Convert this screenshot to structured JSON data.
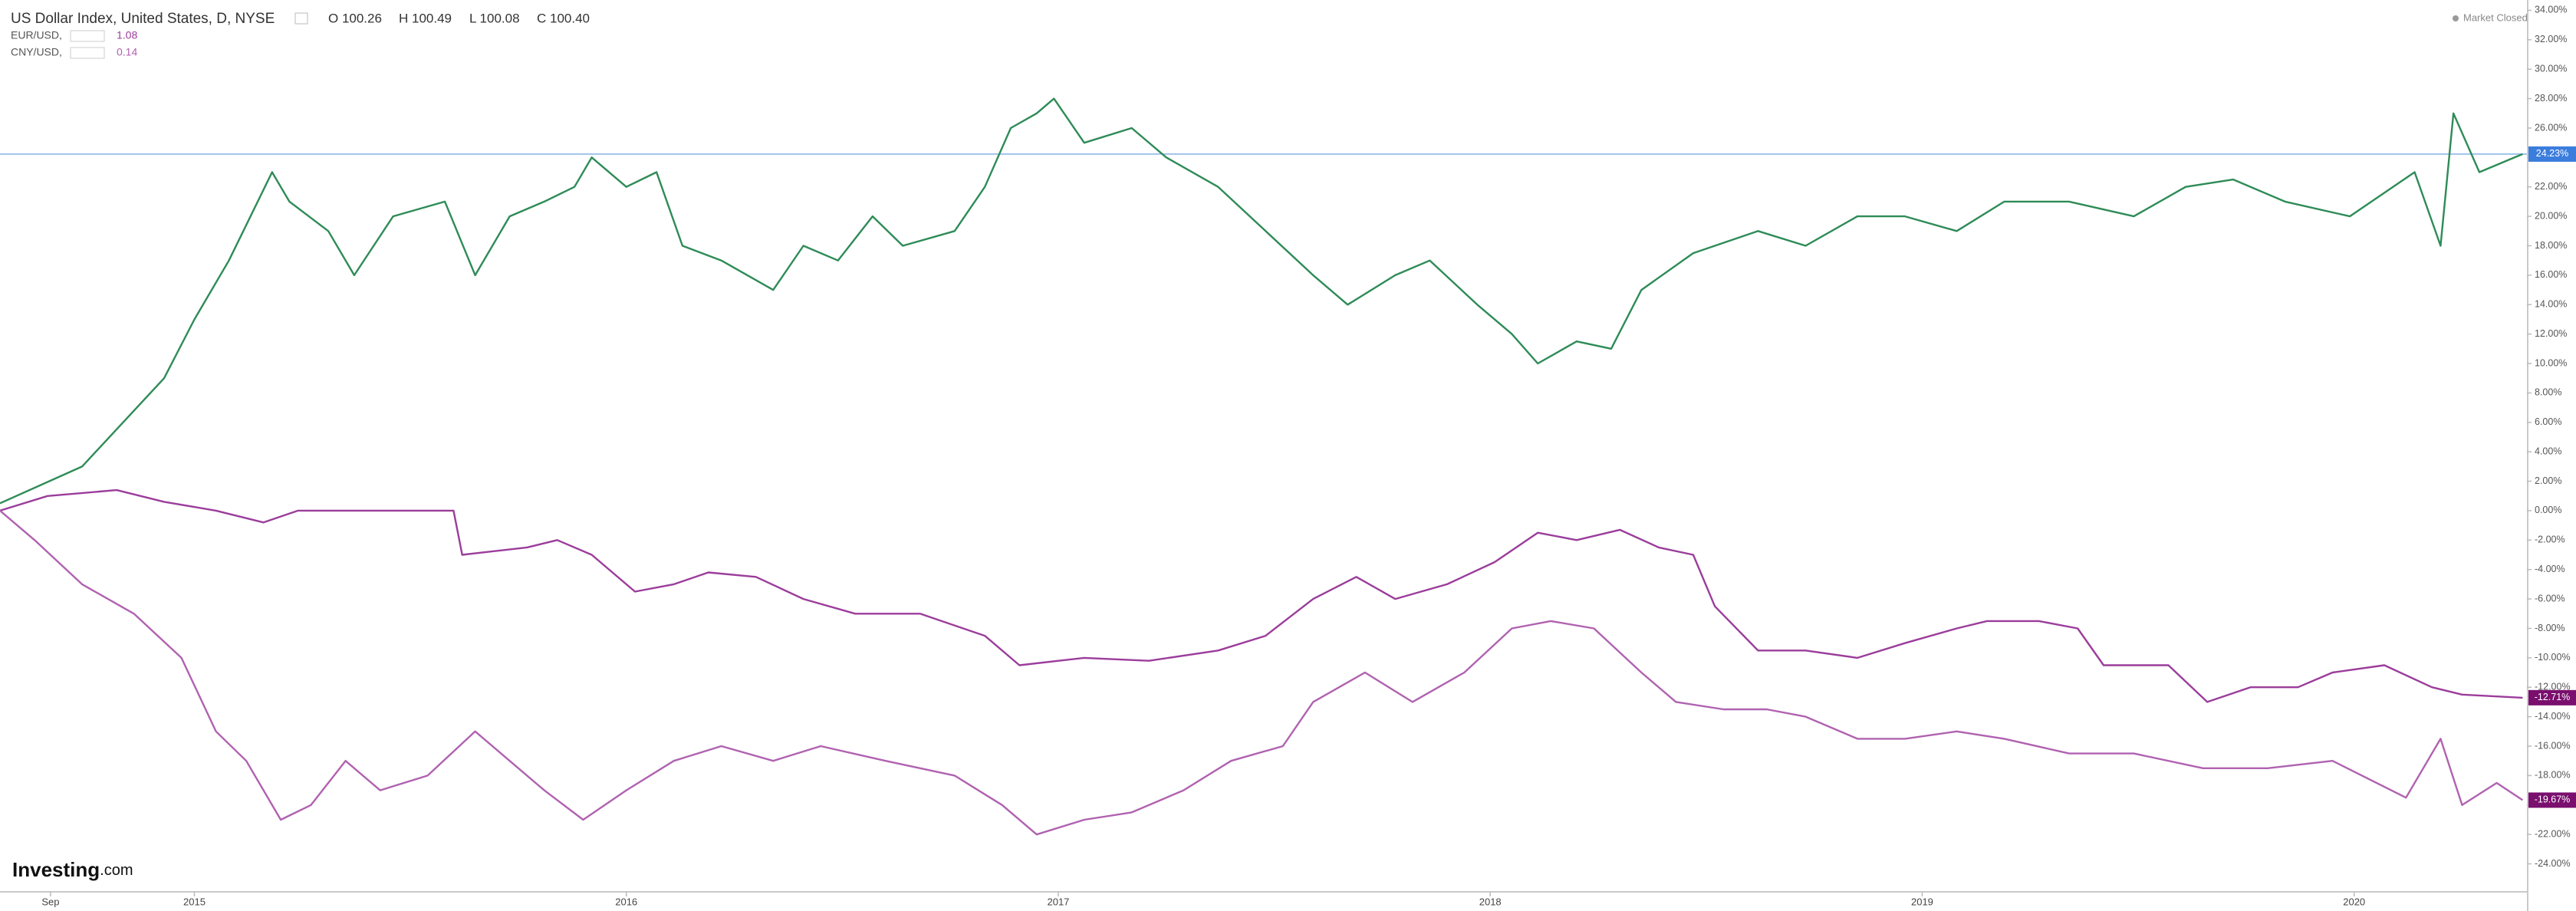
{
  "header": {
    "title": "US Dollar Index, United States, D, NYSE",
    "open": "O 100.26",
    "high": "H 100.49",
    "low": "L 100.08",
    "close": "C 100.40",
    "studies": [
      {
        "name": "EUR/USD,",
        "value": "1.08"
      },
      {
        "name": "CNY/USD,",
        "value": "0.14"
      }
    ],
    "status": "Market Closed",
    "brand": "Investing",
    "brand_suffix": ".com"
  },
  "chart_data": {
    "type": "line",
    "xlim": [
      2014.55,
      2020.4
    ],
    "xticks": [
      {
        "value": 2014.667,
        "label": "Sep"
      },
      2015,
      2016,
      2017,
      2018,
      2019,
      2020
    ],
    "ylim": [
      -25.9,
      34.7
    ],
    "yticks": [
      {
        "value": 34,
        "label": "34.00%"
      },
      {
        "value": 32,
        "label": "32.00%"
      },
      {
        "value": 30,
        "label": "30.00%"
      },
      {
        "value": 28,
        "label": "28.00%"
      },
      {
        "value": 26,
        "label": "26.00%"
      },
      {
        "value": 24,
        "label": "24.00%"
      },
      {
        "value": 22,
        "label": "22.00%"
      },
      {
        "value": 20,
        "label": "20.00%"
      },
      {
        "value": 18,
        "label": "18.00%"
      },
      {
        "value": 16,
        "label": "16.00%"
      },
      {
        "value": 14,
        "label": "14.00%"
      },
      {
        "value": 12,
        "label": "12.00%"
      },
      {
        "value": 10,
        "label": "10.00%"
      },
      {
        "value": 8,
        "label": "8.00%"
      },
      {
        "value": 6,
        "label": "6.00%"
      },
      {
        "value": 4,
        "label": "4.00%"
      },
      {
        "value": 2,
        "label": "2.00%"
      },
      {
        "value": 0,
        "label": "0.00%"
      },
      {
        "value": -2,
        "label": "-2.00%"
      },
      {
        "value": -4,
        "label": "-4.00%"
      },
      {
        "value": -6,
        "label": "-6.00%"
      },
      {
        "value": -8,
        "label": "-8.00%"
      },
      {
        "value": -10,
        "label": "-10.00%"
      },
      {
        "value": -12,
        "label": "-12.00%"
      },
      {
        "value": -14,
        "label": "-14.00%"
      },
      {
        "value": -16,
        "label": "-16.00%"
      },
      {
        "value": -18,
        "label": "-18.00%"
      },
      {
        "value": -20,
        "label": "-20.00%"
      },
      {
        "value": -22,
        "label": "-22.00%"
      },
      {
        "value": -24,
        "label": "-24.00%"
      }
    ],
    "series": [
      {
        "name": "US Dollar Index",
        "color": "#2e8b57",
        "badge_color": "#3b7ddd",
        "last_label": "24.23%",
        "price_line": true,
        "x": [
          2014.55,
          2014.74,
          2014.93,
          2015.0,
          2015.08,
          2015.18,
          2015.22,
          2015.31,
          2015.37,
          2015.46,
          2015.58,
          2015.65,
          2015.73,
          2015.81,
          2015.88,
          2015.92,
          2016.0,
          2016.07,
          2016.13,
          2016.22,
          2016.34,
          2016.41,
          2016.49,
          2016.57,
          2016.64,
          2016.76,
          2016.83,
          2016.89,
          2016.95,
          2016.99,
          2017.06,
          2017.17,
          2017.25,
          2017.37,
          2017.48,
          2017.59,
          2017.67,
          2017.78,
          2017.86,
          2017.97,
          2018.05,
          2018.11,
          2018.2,
          2018.28,
          2018.35,
          2018.47,
          2018.62,
          2018.73,
          2018.85,
          2018.96,
          2019.08,
          2019.19,
          2019.34,
          2019.49,
          2019.61,
          2019.72,
          2019.84,
          2019.99,
          2020.14,
          2020.2,
          2020.23,
          2020.29,
          2020.39
        ],
        "values": [
          0.5,
          3,
          9,
          13,
          17,
          23,
          21,
          19,
          16,
          20,
          21,
          16,
          20,
          21,
          22,
          24,
          22,
          23,
          18,
          17,
          15,
          18,
          17,
          20,
          18,
          19,
          22,
          26,
          27,
          28,
          25,
          26,
          24,
          22,
          19,
          16,
          14,
          16,
          17,
          14,
          12,
          10,
          11.5,
          11,
          15,
          17.5,
          19,
          18,
          20,
          20,
          19,
          21,
          21,
          20,
          22,
          22.5,
          21,
          20,
          23,
          18,
          27,
          23,
          24.23
        ]
      },
      {
        "name": "EUR/USD",
        "color": "#9b3d9b",
        "badge_color": "#7a0f6e",
        "last_label": "-12.71%",
        "x": [
          2014.55,
          2014.66,
          2014.82,
          2014.93,
          2015.05,
          2015.16,
          2015.24,
          2015.6,
          2015.62,
          2015.77,
          2015.84,
          2015.92,
          2016.02,
          2016.11,
          2016.19,
          2016.3,
          2016.41,
          2016.53,
          2016.68,
          2016.83,
          2016.91,
          2017.06,
          2017.21,
          2017.37,
          2017.48,
          2017.59,
          2017.69,
          2017.78,
          2017.9,
          2018.01,
          2018.11,
          2018.2,
          2018.3,
          2018.39,
          2018.47,
          2018.52,
          2018.62,
          2018.73,
          2018.85,
          2018.96,
          2019.08,
          2019.15,
          2019.27,
          2019.36,
          2019.42,
          2019.57,
          2019.66,
          2019.76,
          2019.87,
          2019.95,
          2020.07,
          2020.18,
          2020.25,
          2020.39
        ],
        "values": [
          0,
          1,
          1.4,
          0.6,
          0,
          -0.8,
          0,
          0,
          -3,
          -2.5,
          -2,
          -3,
          -5.5,
          -5,
          -4.2,
          -4.5,
          -6,
          -7,
          -7,
          -8.5,
          -10.5,
          -10,
          -10.2,
          -9.5,
          -8.5,
          -6,
          -4.5,
          -6,
          -5,
          -3.5,
          -1.5,
          -2,
          -1.3,
          -2.5,
          -3,
          -6.5,
          -9.5,
          -9.5,
          -10,
          -9,
          -8,
          -7.5,
          -7.5,
          -8,
          -10.5,
          -10.5,
          -13,
          -12,
          -12,
          -11,
          -10.5,
          -12,
          -12.5,
          -12.71
        ]
      },
      {
        "name": "CNY/USD",
        "color": "#b062b0",
        "badge_color": "#7a0f6e",
        "last_label": "-19.67%",
        "x": [
          2014.55,
          2014.63,
          2014.74,
          2014.86,
          2014.97,
          2015.05,
          2015.12,
          2015.2,
          2015.27,
          2015.35,
          2015.43,
          2015.54,
          2015.65,
          2015.73,
          2015.81,
          2015.9,
          2016.0,
          2016.11,
          2016.22,
          2016.34,
          2016.45,
          2016.6,
          2016.76,
          2016.87,
          2016.95,
          2017.06,
          2017.17,
          2017.29,
          2017.4,
          2017.52,
          2017.59,
          2017.71,
          2017.82,
          2017.94,
          2018.05,
          2018.14,
          2018.24,
          2018.35,
          2018.43,
          2018.54,
          2018.64,
          2018.73,
          2018.85,
          2018.96,
          2019.08,
          2019.19,
          2019.34,
          2019.49,
          2019.65,
          2019.8,
          2019.95,
          2020.12,
          2020.2,
          2020.25,
          2020.33,
          2020.39
        ],
        "values": [
          0,
          -2,
          -5,
          -7,
          -10,
          -15,
          -17,
          -21,
          -20,
          -17,
          -19,
          -18,
          -15,
          -17,
          -19,
          -21,
          -19,
          -17,
          -16,
          -17,
          -16,
          -17,
          -18,
          -20,
          -22,
          -21,
          -20.5,
          -19,
          -17,
          -16,
          -13,
          -11,
          -13,
          -11,
          -8,
          -7.5,
          -8,
          -11,
          -13,
          -13.5,
          -13.5,
          -14,
          -15.5,
          -15.5,
          -15,
          -15.5,
          -16.5,
          -16.5,
          -17.5,
          -17.5,
          -17,
          -19.5,
          -15.5,
          -20,
          -18.5,
          -19.67
        ]
      }
    ]
  }
}
